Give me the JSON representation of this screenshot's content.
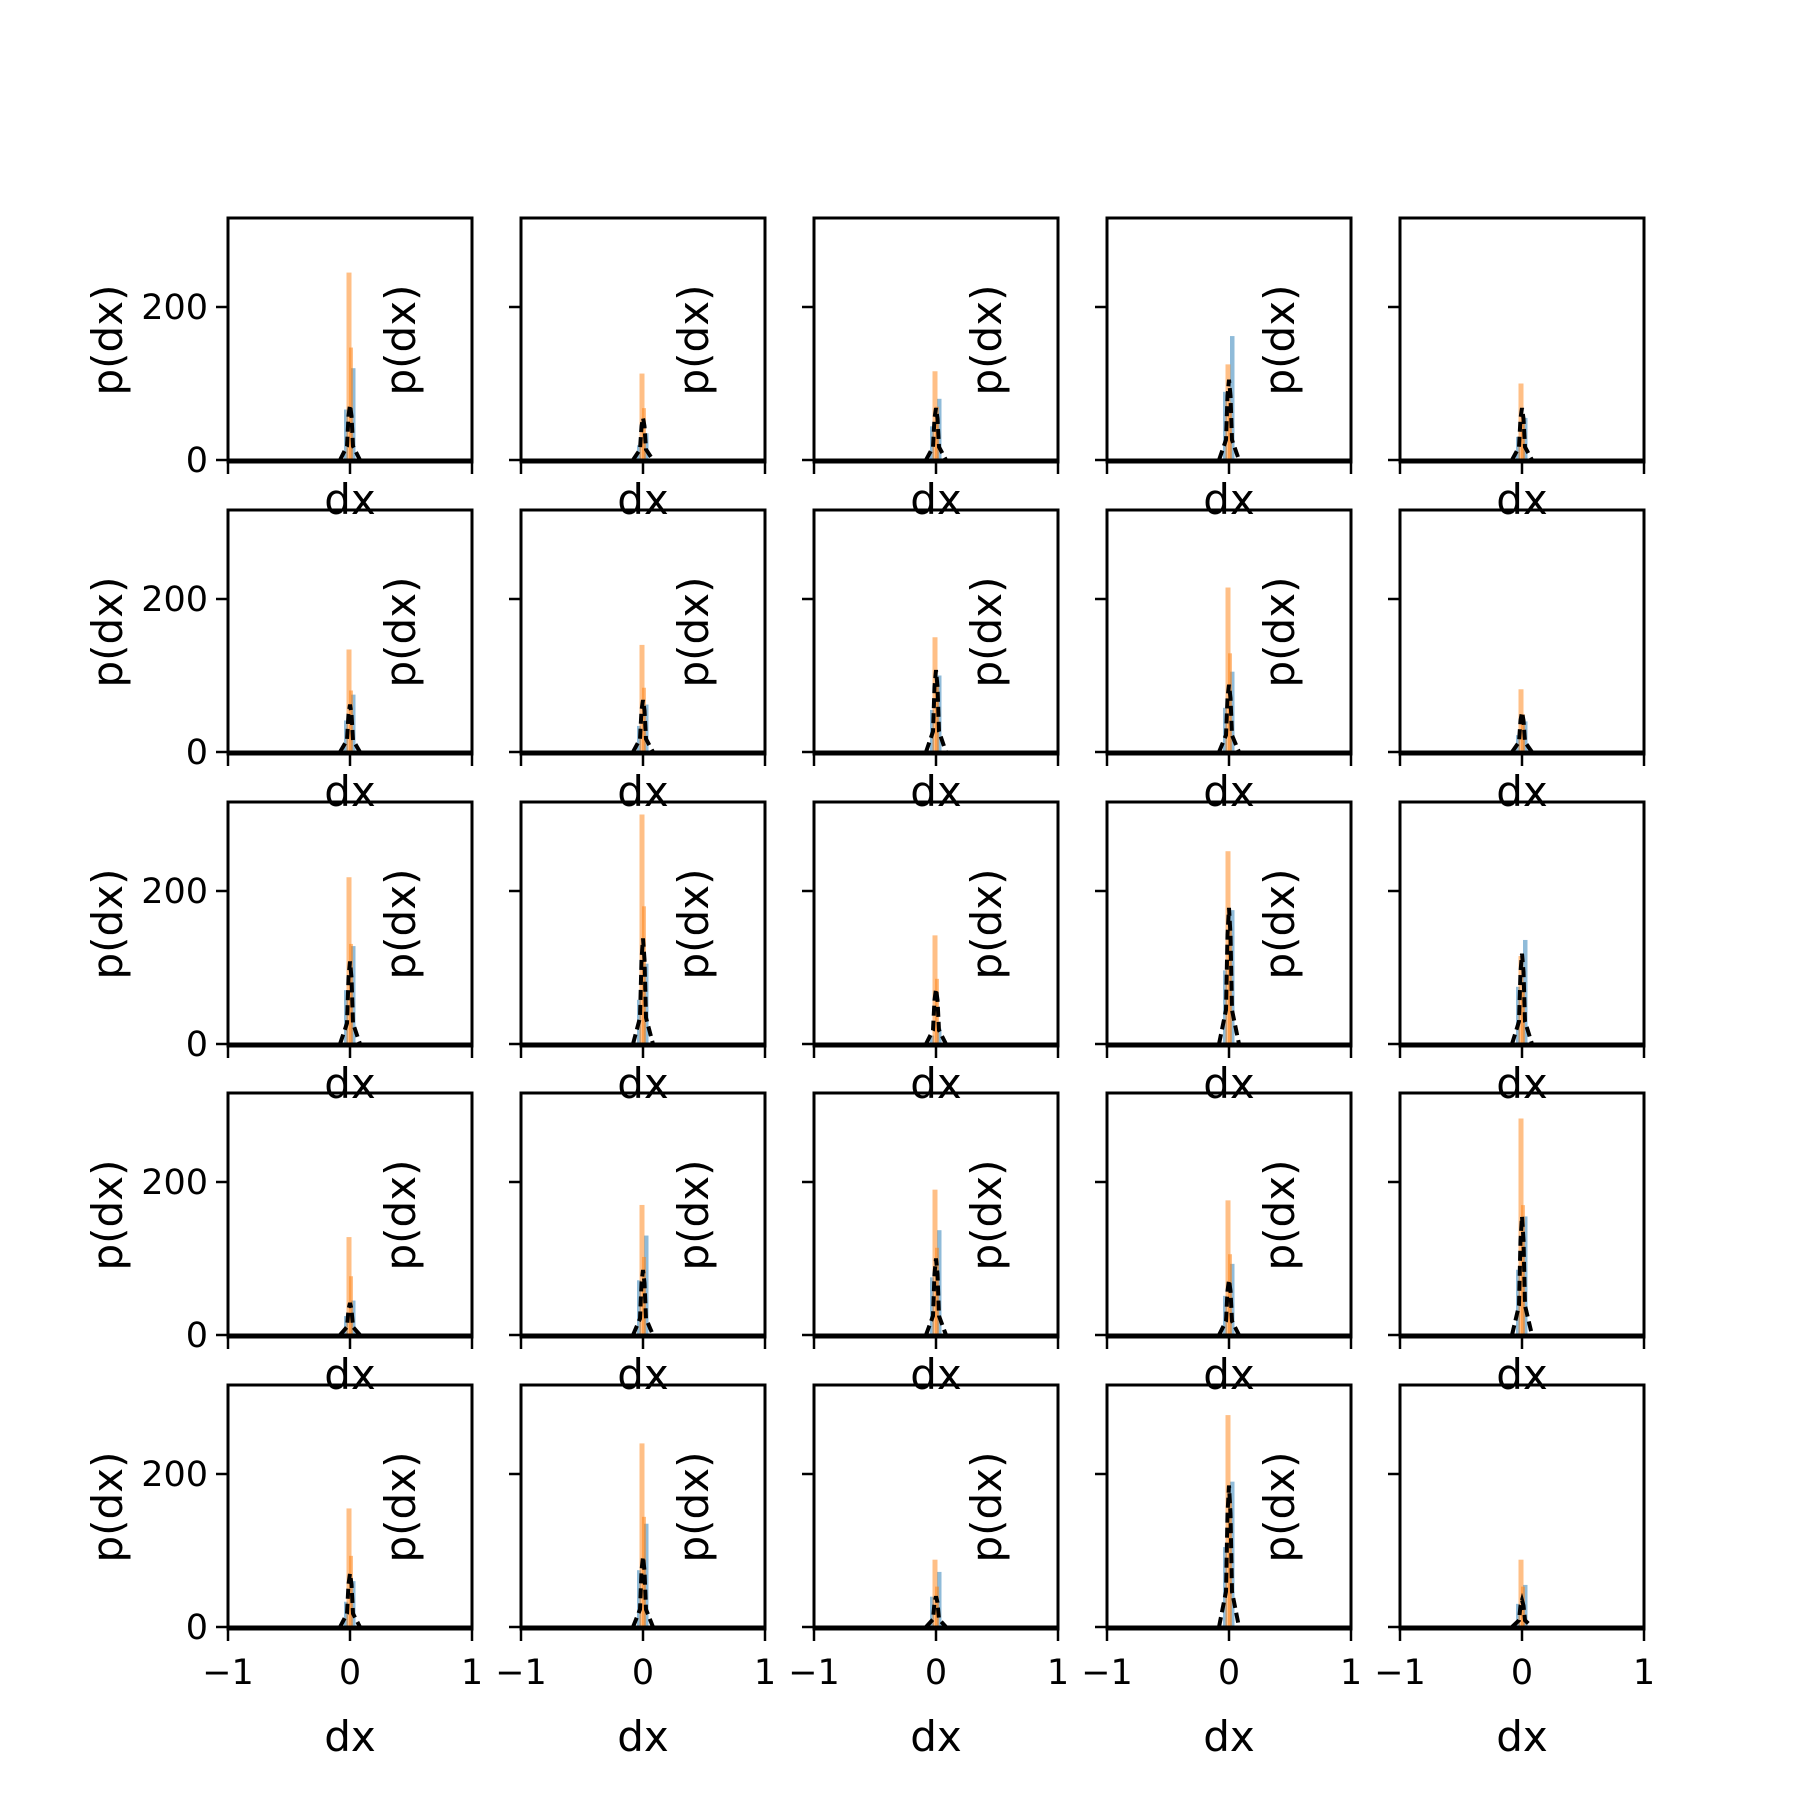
{
  "figure": {
    "grid": {
      "rows": 5,
      "cols": 5
    }
  },
  "colors": {
    "series_a": "#1f77b4",
    "series_b": "#ff7f0e",
    "fit_line": "#000000"
  },
  "chart_data": {
    "type": "histogram-grid",
    "shared": {
      "xlabel": "dx",
      "ylabel": "p(dx)",
      "xlim": [
        -1,
        1
      ],
      "ylim": [
        0,
        320
      ],
      "xticks": [
        -1,
        0,
        1
      ],
      "xtick_labels": [
        "−1",
        "0",
        "1"
      ],
      "yticks": [
        0,
        200
      ],
      "ytick_labels": [
        "0",
        "200"
      ],
      "grid": false,
      "legend": "none"
    },
    "panels": [
      {
        "row": 0,
        "col": 0,
        "series_a_peak": 120,
        "series_b_peak": 245,
        "curve_peak": 72
      },
      {
        "row": 0,
        "col": 1,
        "series_a_peak": 35,
        "series_b_peak": 113,
        "curve_peak": 55
      },
      {
        "row": 0,
        "col": 2,
        "series_a_peak": 80,
        "series_b_peak": 116,
        "curve_peak": 68
      },
      {
        "row": 0,
        "col": 3,
        "series_a_peak": 162,
        "series_b_peak": 125,
        "curve_peak": 105
      },
      {
        "row": 0,
        "col": 4,
        "series_a_peak": 55,
        "series_b_peak": 100,
        "curve_peak": 68
      },
      {
        "row": 1,
        "col": 0,
        "series_a_peak": 75,
        "series_b_peak": 134,
        "curve_peak": 62
      },
      {
        "row": 1,
        "col": 1,
        "series_a_peak": 62,
        "series_b_peak": 140,
        "curve_peak": 68
      },
      {
        "row": 1,
        "col": 2,
        "series_a_peak": 100,
        "series_b_peak": 150,
        "curve_peak": 107
      },
      {
        "row": 1,
        "col": 3,
        "series_a_peak": 105,
        "series_b_peak": 215,
        "curve_peak": 88
      },
      {
        "row": 1,
        "col": 4,
        "series_a_peak": 40,
        "series_b_peak": 82,
        "curve_peak": 52
      },
      {
        "row": 2,
        "col": 0,
        "series_a_peak": 128,
        "series_b_peak": 218,
        "curve_peak": 108
      },
      {
        "row": 2,
        "col": 1,
        "series_a_peak": 105,
        "series_b_peak": 300,
        "curve_peak": 138
      },
      {
        "row": 2,
        "col": 2,
        "series_a_peak": 20,
        "series_b_peak": 142,
        "curve_peak": 72
      },
      {
        "row": 2,
        "col": 3,
        "series_a_peak": 175,
        "series_b_peak": 252,
        "curve_peak": 178
      },
      {
        "row": 2,
        "col": 4,
        "series_a_peak": 136,
        "series_b_peak": 115,
        "curve_peak": 118
      },
      {
        "row": 3,
        "col": 0,
        "series_a_peak": 45,
        "series_b_peak": 128,
        "curve_peak": 42
      },
      {
        "row": 3,
        "col": 1,
        "series_a_peak": 130,
        "series_b_peak": 170,
        "curve_peak": 85
      },
      {
        "row": 3,
        "col": 2,
        "series_a_peak": 137,
        "series_b_peak": 190,
        "curve_peak": 100
      },
      {
        "row": 3,
        "col": 3,
        "series_a_peak": 93,
        "series_b_peak": 176,
        "curve_peak": 72
      },
      {
        "row": 3,
        "col": 4,
        "series_a_peak": 155,
        "series_b_peak": 283,
        "curve_peak": 155
      },
      {
        "row": 4,
        "col": 0,
        "series_a_peak": 60,
        "series_b_peak": 155,
        "curve_peak": 70
      },
      {
        "row": 4,
        "col": 1,
        "series_a_peak": 135,
        "series_b_peak": 240,
        "curve_peak": 92
      },
      {
        "row": 4,
        "col": 2,
        "series_a_peak": 72,
        "series_b_peak": 88,
        "curve_peak": 40
      },
      {
        "row": 4,
        "col": 3,
        "series_a_peak": 190,
        "series_b_peak": 277,
        "curve_peak": 185
      },
      {
        "row": 4,
        "col": 4,
        "series_a_peak": 55,
        "series_b_peak": 88,
        "curve_peak": 35
      }
    ]
  }
}
